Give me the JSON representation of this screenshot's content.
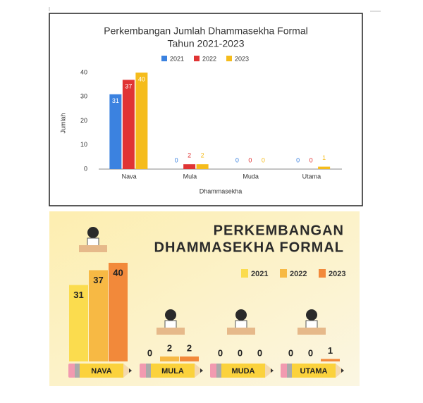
{
  "chart_data": [
    {
      "type": "bar",
      "title": "Perkembangan Jumlah Dhammasekha Formal",
      "subtitle": "Tahun 2021-2023",
      "x_label": "Dhammasekha",
      "y_label": "Jumlah",
      "categories": [
        "Nava",
        "Mula",
        "Muda",
        "Utama"
      ],
      "series": [
        {
          "name": "2021",
          "color": "#3b82e0",
          "values": [
            31,
            0,
            0,
            0
          ]
        },
        {
          "name": "2022",
          "color": "#e03434",
          "values": [
            37,
            2,
            0,
            0
          ]
        },
        {
          "name": "2023",
          "color": "#f5bc1c",
          "values": [
            40,
            2,
            0,
            1
          ]
        }
      ],
      "ylim": [
        0,
        40
      ],
      "yticks": [
        0,
        10,
        20,
        30,
        40
      ],
      "grid": false,
      "legend": "top"
    },
    {
      "type": "infographic-bar",
      "title": "PERKEMBANGAN",
      "subtitle": "DHAMMASEKHA FORMAL",
      "categories": [
        "NAVA",
        "MULA",
        "MUDA",
        "UTAMA"
      ],
      "series": [
        {
          "name": "2021",
          "color": "#fbdc4e",
          "values": [
            31,
            0,
            0,
            0
          ]
        },
        {
          "name": "2022",
          "color": "#f7b944",
          "values": [
            37,
            2,
            0,
            0
          ]
        },
        {
          "name": "2023",
          "color": "#f2893a",
          "values": [
            40,
            2,
            0,
            1
          ]
        }
      ],
      "legend": "top-right"
    }
  ]
}
